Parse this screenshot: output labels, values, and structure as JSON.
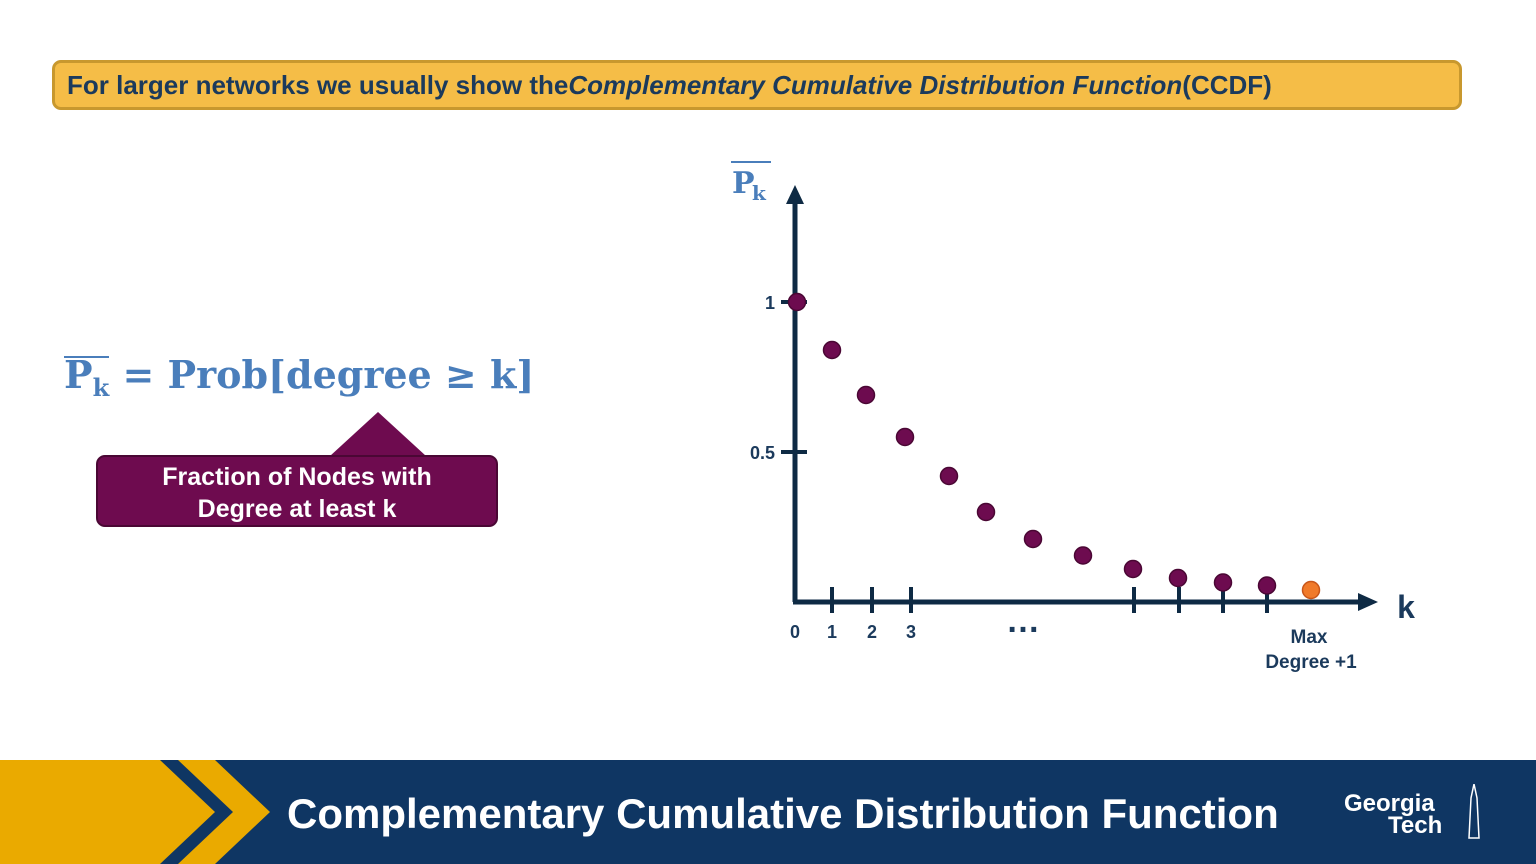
{
  "banner": {
    "text_before": "For larger networks we usually show the ",
    "text_italic": "Complementary Cumulative Distribution Function",
    "text_after": " (CCDF)"
  },
  "formula": {
    "symbol": "P",
    "subscript": "k",
    "rest": " = Prob[degree ≥ k]"
  },
  "callout": {
    "line1": "Fraction of Nodes with",
    "line2": "Degree at least k"
  },
  "chart_data": {
    "type": "scatter",
    "ylabel": "P",
    "ylabel_subscript": "k",
    "xlabel": "k",
    "ylim": [
      0,
      1.3
    ],
    "y_ticks": [
      {
        "value": 1,
        "label": "1"
      },
      {
        "value": 0.5,
        "label": "0.5"
      }
    ],
    "x_tick_labels": [
      "0",
      "1",
      "2",
      "3"
    ],
    "ellipsis_label": "…",
    "max_label_line1": "Max",
    "max_label_line2": "Degree +1",
    "points": [
      {
        "y": 1.0,
        "color": "#6d0b4f"
      },
      {
        "y": 0.84,
        "color": "#6d0b4f"
      },
      {
        "y": 0.69,
        "color": "#6d0b4f"
      },
      {
        "y": 0.55,
        "color": "#6d0b4f"
      },
      {
        "y": 0.42,
        "color": "#6d0b4f"
      },
      {
        "y": 0.3,
        "color": "#6d0b4f"
      },
      {
        "y": 0.21,
        "color": "#6d0b4f"
      },
      {
        "y": 0.155,
        "color": "#6d0b4f"
      },
      {
        "y": 0.11,
        "color": "#6d0b4f"
      },
      {
        "y": 0.08,
        "color": "#6d0b4f"
      },
      {
        "y": 0.065,
        "color": "#6d0b4f"
      },
      {
        "y": 0.055,
        "color": "#6d0b4f"
      },
      {
        "y": 0.04,
        "color": "#f07a2a"
      }
    ],
    "grid": false,
    "axis_color": "#0e2a44",
    "label_color": "#1b3a5c"
  },
  "footer": {
    "title": "Complementary Cumulative Distribution Function",
    "logo_line1": "Georgia",
    "logo_line2": "Tech"
  },
  "colors": {
    "banner_bg": "#f5bd47",
    "accent_blue": "#4a7ebb",
    "callout_bg": "#6e0b4f",
    "footer_bg": "#0f3663",
    "footer_gold": "#eaaa00"
  }
}
